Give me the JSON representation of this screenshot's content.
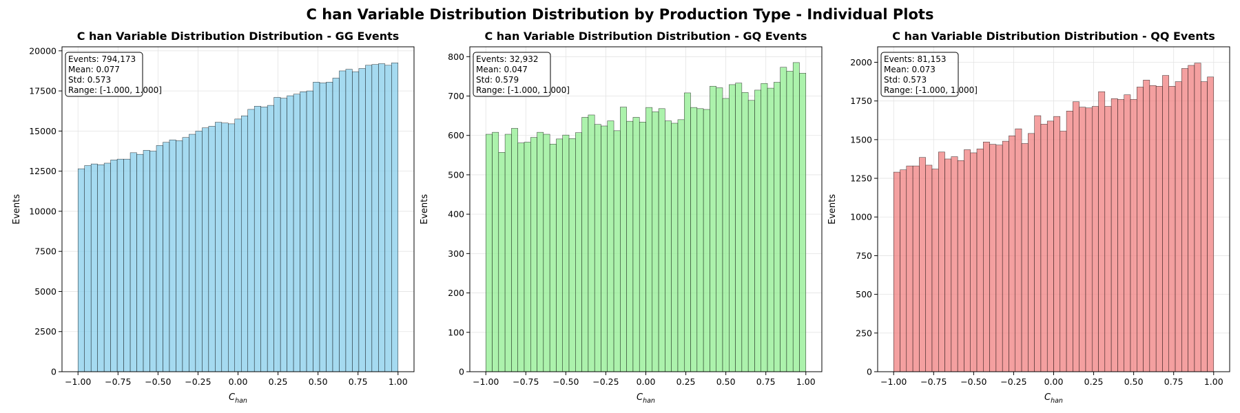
{
  "figure": {
    "suptitle": "C han Variable Distribution Distribution by Production Type - Individual Plots"
  },
  "chart_data": [
    {
      "type": "bar",
      "title": "C han Variable Distribution Distribution - GG Events",
      "xlabel_main": "C",
      "xlabel_sub": "han",
      "ylabel": "Events",
      "bar_color": "#87ceeb",
      "xlim": [
        -1.1,
        1.1
      ],
      "ylim": [
        0,
        20250
      ],
      "xticks": [
        -1.0,
        -0.75,
        -0.5,
        -0.25,
        0.0,
        0.25,
        0.5,
        0.75,
        1.0
      ],
      "xtick_labels": [
        "−1.00",
        "−0.75",
        "−0.50",
        "−0.25",
        "0.00",
        "0.25",
        "0.50",
        "0.75",
        "1.00"
      ],
      "yticks": [
        0,
        2500,
        5000,
        7500,
        10000,
        12500,
        15000,
        17500,
        20000
      ],
      "ytick_labels": [
        "0",
        "2500",
        "5000",
        "7500",
        "10000",
        "12500",
        "15000",
        "17500",
        "20000"
      ],
      "grid": true,
      "bin_range": [
        -1.0,
        1.0
      ],
      "values": [
        12650,
        12850,
        12950,
        12900,
        13000,
        13200,
        13250,
        13250,
        13650,
        13550,
        13800,
        13750,
        14100,
        14300,
        14450,
        14400,
        14600,
        14800,
        15000,
        15200,
        15300,
        15550,
        15500,
        15450,
        15750,
        15950,
        16350,
        16550,
        16500,
        16600,
        17100,
        17050,
        17200,
        17300,
        17450,
        17500,
        18050,
        18000,
        18050,
        18300,
        18750,
        18850,
        18700,
        18900,
        19100,
        19150,
        19200,
        19100,
        19250
      ],
      "stats": [
        "Events: 794,173",
        "Mean: 0.077",
        "Std: 0.573",
        "Range: [-1.000, 1.000]"
      ]
    },
    {
      "type": "bar",
      "title": "C han Variable Distribution Distribution - GQ Events",
      "xlabel_main": "C",
      "xlabel_sub": "han",
      "ylabel": "Events",
      "bar_color": "#90ee90",
      "xlim": [
        -1.1,
        1.1
      ],
      "ylim": [
        0,
        825
      ],
      "xticks": [
        -1.0,
        -0.75,
        -0.5,
        -0.25,
        0.0,
        0.25,
        0.5,
        0.75,
        1.0
      ],
      "xtick_labels": [
        "−1.00",
        "−0.75",
        "−0.50",
        "−0.25",
        "0.00",
        "0.25",
        "0.50",
        "0.75",
        "1.00"
      ],
      "yticks": [
        0,
        100,
        200,
        300,
        400,
        500,
        600,
        700,
        800
      ],
      "ytick_labels": [
        "0",
        "100",
        "200",
        "300",
        "400",
        "500",
        "600",
        "700",
        "800"
      ],
      "grid": true,
      "bin_range": [
        -1.0,
        1.0
      ],
      "values": [
        603,
        608,
        557,
        603,
        618,
        581,
        583,
        595,
        608,
        603,
        578,
        591,
        601,
        592,
        607,
        646,
        652,
        628,
        624,
        637,
        612,
        672,
        636,
        646,
        634,
        671,
        660,
        668,
        637,
        631,
        640,
        708,
        671,
        668,
        666,
        725,
        721,
        694,
        729,
        733,
        709,
        689,
        715,
        732,
        720,
        735,
        773,
        763,
        785,
        758
      ],
      "stats": [
        "Events: 32,932",
        "Mean: 0.047",
        "Std: 0.579",
        "Range: [-1.000, 1.000]"
      ]
    },
    {
      "type": "bar",
      "title": "C han Variable Distribution Distribution - QQ Events",
      "xlabel_main": "C",
      "xlabel_sub": "han",
      "ylabel": "Events",
      "bar_color": "#f08080",
      "xlim": [
        -1.1,
        1.1
      ],
      "ylim": [
        0,
        2100
      ],
      "xticks": [
        -1.0,
        -0.75,
        -0.5,
        -0.25,
        0.0,
        0.25,
        0.5,
        0.75,
        1.0
      ],
      "xtick_labels": [
        "−1.00",
        "−0.75",
        "−0.50",
        "−0.25",
        "0.00",
        "0.25",
        "0.50",
        "0.75",
        "1.00"
      ],
      "yticks": [
        0,
        250,
        500,
        750,
        1000,
        1250,
        1500,
        1750,
        2000
      ],
      "ytick_labels": [
        "0",
        "250",
        "500",
        "750",
        "1000",
        "1250",
        "1500",
        "1750",
        "2000"
      ],
      "grid": true,
      "bin_range": [
        -1.0,
        1.0
      ],
      "values": [
        1290,
        1305,
        1330,
        1330,
        1385,
        1335,
        1310,
        1420,
        1375,
        1390,
        1365,
        1435,
        1415,
        1440,
        1485,
        1470,
        1465,
        1490,
        1525,
        1570,
        1475,
        1540,
        1655,
        1600,
        1620,
        1650,
        1555,
        1685,
        1745,
        1710,
        1705,
        1715,
        1810,
        1715,
        1765,
        1760,
        1790,
        1760,
        1840,
        1885,
        1850,
        1845,
        1915,
        1845,
        1875,
        1960,
        1980,
        1995,
        1875,
        1905
      ],
      "stats": [
        "Events: 81,153",
        "Mean: 0.073",
        "Std: 0.573",
        "Range: [-1.000, 1.000]"
      ]
    }
  ]
}
